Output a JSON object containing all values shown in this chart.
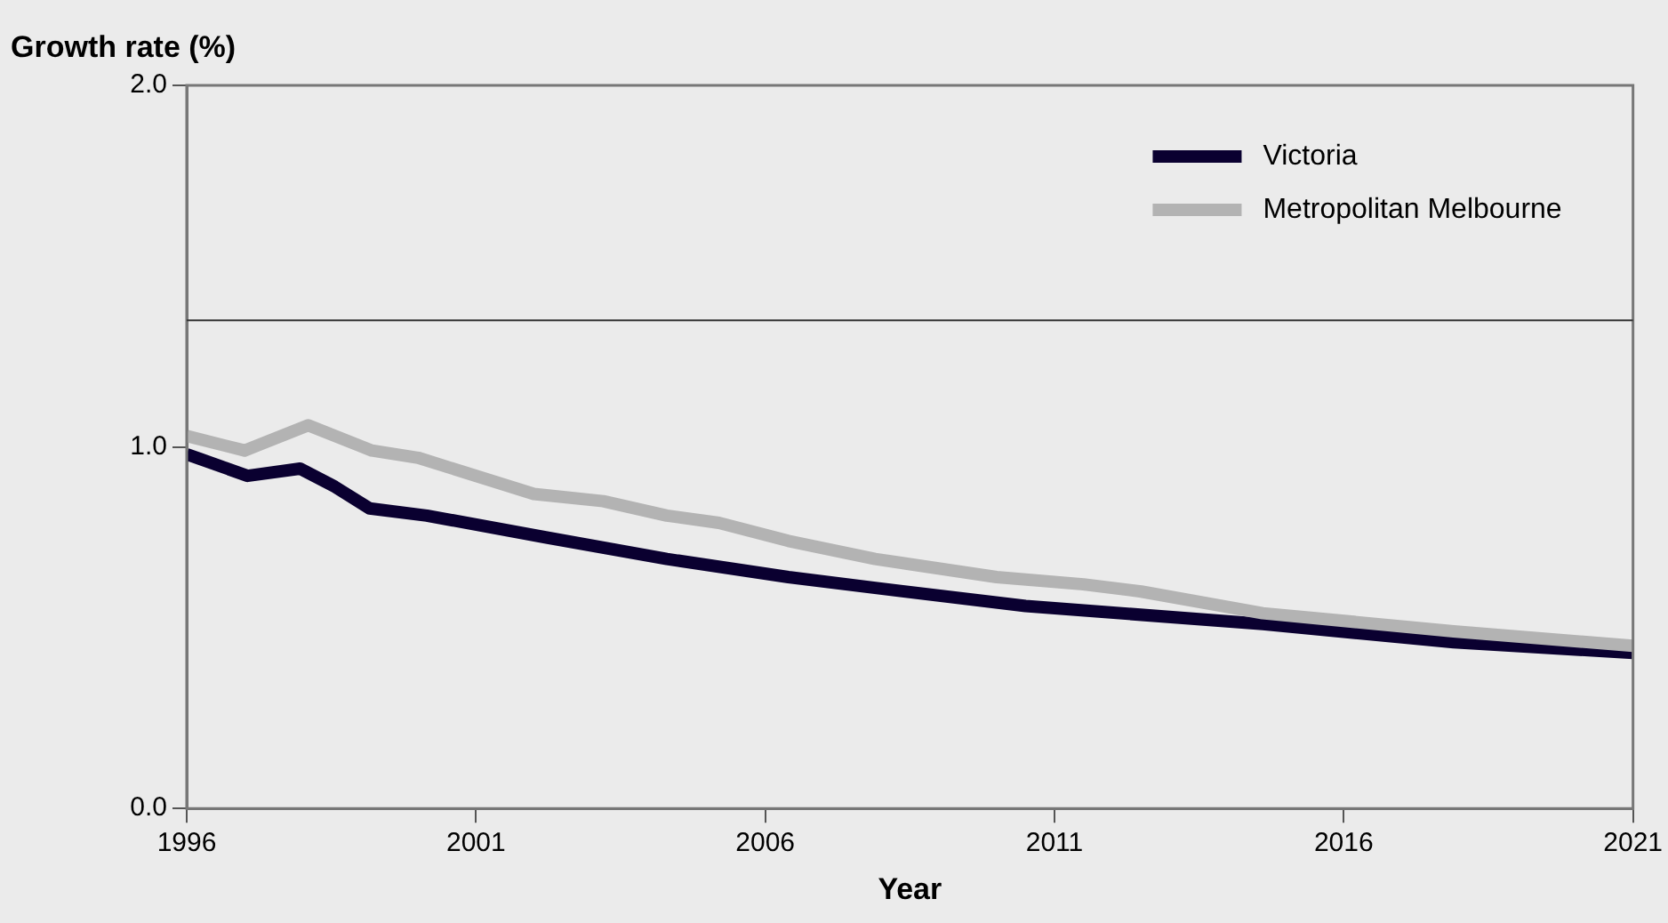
{
  "chart_data": {
    "type": "line",
    "xlabel": "Year",
    "ylabel": "Growth rate (%)",
    "xlim": [
      1996,
      2021
    ],
    "xticks": [
      1996,
      2001,
      2006,
      2011,
      2016,
      2021
    ],
    "ylim": [
      0,
      2
    ],
    "yticks": [
      {
        "value": 0,
        "label": "0.0"
      },
      {
        "value": 1,
        "label": "1.0"
      },
      {
        "value": 2,
        "label": "2.0"
      }
    ],
    "grid": false,
    "legend": "top right",
    "marker": "none",
    "line_style": "solid",
    "ref_lines": [
      {
        "axis": "y",
        "value": 1.35,
        "color": "#333333"
      }
    ],
    "series": [
      {
        "name": "Victoria",
        "color": "#0a0030",
        "x": [
          1996,
          1997.05,
          1997.96,
          1998.56,
          1999.16,
          2000.15,
          2002.2,
          2004.3,
          2006.4,
          2007.9,
          2010.5,
          2014.6,
          2017.9,
          2021
        ],
        "values": [
          0.98,
          0.92,
          0.94,
          0.89,
          0.83,
          0.81,
          0.75,
          0.69,
          0.64,
          0.61,
          0.56,
          0.51,
          0.46,
          0.43
        ]
      },
      {
        "name": "Metropolitan Melbourne",
        "color": "#b3b3b3",
        "x": [
          1996,
          1997,
          1998.1,
          1999.2,
          2000,
          2002,
          2003.2,
          2004.3,
          2005.2,
          2006.4,
          2007.9,
          2010,
          2011.5,
          2012.5,
          2014.6,
          2017.9,
          2021
        ],
        "values": [
          1.03,
          0.99,
          1.06,
          0.99,
          0.97,
          0.87,
          0.85,
          0.81,
          0.79,
          0.74,
          0.69,
          0.64,
          0.62,
          0.6,
          0.54,
          0.49,
          0.45
        ]
      }
    ]
  }
}
